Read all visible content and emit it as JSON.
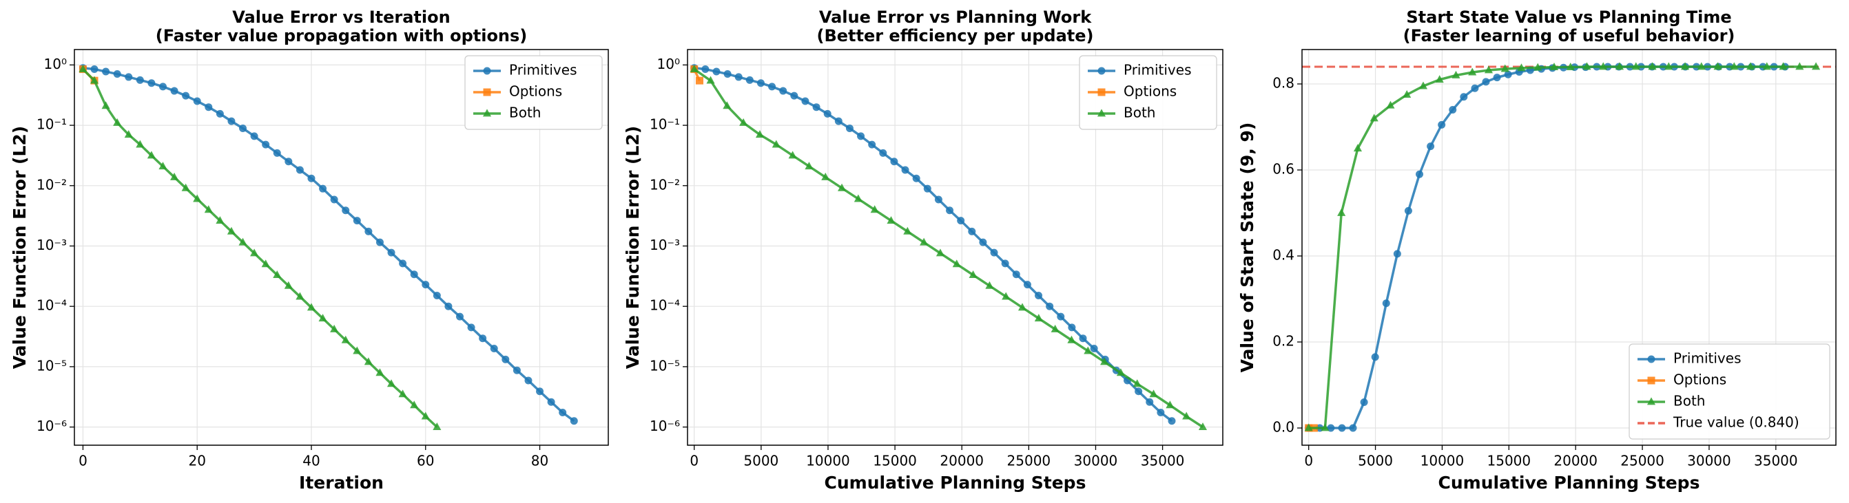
{
  "chart_data": [
    {
      "type": "line",
      "title": "Value Error vs Iteration",
      "subtitle": "(Faster value propagation with options)",
      "xlabel": "Iteration",
      "ylabel": "Value Function Error (L2)",
      "log_y": true,
      "grid": true,
      "legend": "upper right",
      "xlim": [
        -1.5,
        92
      ],
      "xticks": [
        0,
        20,
        40,
        60,
        80
      ],
      "ylim": [
        5e-07,
        1.8
      ],
      "yticks": [
        {
          "value": 1e-06,
          "label": "10⁻⁶"
        },
        {
          "value": 1e-05,
          "label": "10⁻⁵"
        },
        {
          "value": 0.0001,
          "label": "10⁻⁴"
        },
        {
          "value": 0.001,
          "label": "10⁻³"
        },
        {
          "value": 0.01,
          "label": "10⁻²"
        },
        {
          "value": 0.1,
          "label": "10⁻¹"
        },
        {
          "value": 1,
          "label": "10⁰"
        }
      ],
      "series": [
        {
          "name": "Primitives",
          "color": "#1f77b4",
          "marker": "circle",
          "x": [
            0,
            2,
            4,
            6,
            8,
            10,
            12,
            14,
            16,
            18,
            20,
            22,
            24,
            26,
            28,
            30,
            32,
            34,
            36,
            38,
            40,
            42,
            44,
            46,
            48,
            50,
            52,
            54,
            56,
            58,
            60,
            62,
            64,
            66,
            68,
            70,
            72,
            74,
            76,
            78,
            80,
            82,
            84,
            86
          ],
          "values": [
            0.891,
            0.851,
            0.776,
            0.708,
            0.631,
            0.562,
            0.501,
            0.437,
            0.372,
            0.309,
            0.251,
            0.2,
            0.155,
            0.117,
            0.0891,
            0.0661,
            0.0479,
            0.0347,
            0.0251,
            0.0182,
            0.0132,
            0.00891,
            0.00589,
            0.00389,
            0.00263,
            0.00174,
            0.00115,
            0.000776,
            0.000513,
            0.000339,
            0.000229,
            0.000151,
            0.0001,
            6.76e-05,
            4.47e-05,
            2.95e-05,
            2e-05,
            1.32e-05,
            8.7e-06,
            5.9e-06,
            3.9e-06,
            2.6e-06,
            1.74e-06,
            1.26e-06
          ]
        },
        {
          "name": "Options",
          "color": "#ff7f0e",
          "marker": "square",
          "x": [
            0,
            2
          ],
          "values": [
            0.85,
            0.55
          ]
        },
        {
          "name": "Both",
          "color": "#2ca02c",
          "marker": "triangle",
          "x": [
            0,
            2,
            4,
            6,
            8,
            10,
            12,
            14,
            16,
            18,
            20,
            22,
            24,
            26,
            28,
            30,
            32,
            34,
            36,
            38,
            40,
            42,
            44,
            46,
            48,
            50,
            52,
            54,
            56,
            58,
            60,
            62
          ],
          "values": [
            0.85,
            0.55,
            0.21,
            0.11,
            0.07,
            0.048,
            0.0316,
            0.0209,
            0.0138,
            0.00912,
            0.00603,
            0.00398,
            0.00263,
            0.00174,
            0.00115,
            0.000759,
            0.000501,
            0.000331,
            0.000219,
            0.000145,
            9.55e-05,
            6.31e-05,
            4.17e-05,
            2.75e-05,
            1.82e-05,
            1.2e-05,
            7.9e-06,
            5.2e-06,
            3.5e-06,
            2.3e-06,
            1.5e-06,
            1e-06
          ]
        }
      ]
    },
    {
      "type": "line",
      "title": "Value Error vs Planning Work",
      "subtitle": "(Better efficiency per update)",
      "xlabel": "Cumulative Planning Steps",
      "ylabel": "Value Function Error (L2)",
      "log_y": true,
      "grid": true,
      "legend": "upper right",
      "xlim": [
        -500,
        39500
      ],
      "xticks": [
        0,
        5000,
        10000,
        15000,
        20000,
        25000,
        30000,
        35000
      ],
      "ylim": [
        5e-07,
        1.8
      ],
      "yticks": [
        {
          "value": 1e-06,
          "label": "10⁻⁶"
        },
        {
          "value": 1e-05,
          "label": "10⁻⁵"
        },
        {
          "value": 0.0001,
          "label": "10⁻⁴"
        },
        {
          "value": 0.001,
          "label": "10⁻³"
        },
        {
          "value": 0.01,
          "label": "10⁻²"
        },
        {
          "value": 0.1,
          "label": "10⁻¹"
        },
        {
          "value": 1,
          "label": "10⁰"
        }
      ],
      "series": [
        {
          "name": "Primitives",
          "color": "#1f77b4",
          "marker": "circle",
          "x": [
            0,
            830,
            1660,
            2490,
            3320,
            4150,
            4980,
            5810,
            6640,
            7470,
            8300,
            9130,
            9960,
            10790,
            11620,
            12450,
            13280,
            14110,
            14940,
            15770,
            16600,
            17430,
            18260,
            19090,
            19920,
            20750,
            21580,
            22410,
            23240,
            24070,
            24900,
            25730,
            26560,
            27390,
            28220,
            29050,
            29880,
            30710,
            31540,
            32370,
            33200,
            34030,
            34860,
            35690
          ],
          "values": [
            0.891,
            0.851,
            0.776,
            0.708,
            0.631,
            0.562,
            0.501,
            0.437,
            0.372,
            0.309,
            0.251,
            0.2,
            0.155,
            0.117,
            0.0891,
            0.0661,
            0.0479,
            0.0347,
            0.0251,
            0.0182,
            0.0132,
            0.00891,
            0.00589,
            0.00389,
            0.00263,
            0.00174,
            0.00115,
            0.000776,
            0.000513,
            0.000339,
            0.000229,
            0.000151,
            0.0001,
            6.76e-05,
            4.47e-05,
            2.95e-05,
            2e-05,
            1.32e-05,
            8.7e-06,
            5.9e-06,
            3.9e-06,
            2.6e-06,
            1.74e-06,
            1.26e-06
          ]
        },
        {
          "name": "Options",
          "color": "#ff7f0e",
          "marker": "square",
          "x": [
            0,
            400
          ],
          "values": [
            0.85,
            0.55
          ]
        },
        {
          "name": "Both",
          "color": "#2ca02c",
          "marker": "triangle",
          "x": [
            0,
            1226,
            2452,
            3678,
            4904,
            6130,
            7356,
            8582,
            9808,
            11034,
            12260,
            13486,
            14712,
            15938,
            17164,
            18390,
            19616,
            20842,
            22068,
            23294,
            24520,
            25746,
            26972,
            28198,
            29424,
            30650,
            31876,
            33102,
            34328,
            35554,
            36780,
            38006
          ],
          "values": [
            0.85,
            0.55,
            0.21,
            0.11,
            0.07,
            0.048,
            0.0316,
            0.0209,
            0.0138,
            0.00912,
            0.00603,
            0.00398,
            0.00263,
            0.00174,
            0.00115,
            0.000759,
            0.000501,
            0.000331,
            0.000219,
            0.000145,
            9.55e-05,
            6.31e-05,
            4.17e-05,
            2.75e-05,
            1.82e-05,
            1.2e-05,
            7.9e-06,
            5.2e-06,
            3.5e-06,
            2.3e-06,
            1.5e-06,
            1e-06
          ]
        }
      ]
    },
    {
      "type": "line",
      "title": "Start State Value vs Planning Time",
      "subtitle": "(Faster learning of useful behavior)",
      "xlabel": "Cumulative Planning Steps",
      "ylabel": "Value of Start State (9, 9)",
      "log_y": false,
      "grid": true,
      "legend": "lower right",
      "xlim": [
        -500,
        39500
      ],
      "xticks": [
        0,
        5000,
        10000,
        15000,
        20000,
        25000,
        30000,
        35000
      ],
      "ylim": [
        -0.04,
        0.88
      ],
      "yticks": [
        {
          "value": 0,
          "label": "0.0"
        },
        0.2,
        0.4,
        0.6,
        0.8
      ],
      "series": [
        {
          "name": "Primitives",
          "color": "#1f77b4",
          "marker": "circle",
          "x": [
            0,
            830,
            1660,
            2490,
            3320,
            4150,
            4980,
            5810,
            6640,
            7470,
            8300,
            9130,
            9960,
            10790,
            11620,
            12450,
            13280,
            14110,
            14940,
            15770,
            16600,
            17430,
            18260,
            19090,
            19920,
            20750,
            21580,
            22410,
            23240,
            24070,
            24900,
            25730,
            26560,
            27390,
            28220,
            29050,
            29880,
            30710,
            31540,
            32370,
            33200,
            34030,
            34860,
            35690
          ],
          "values": [
            0,
            0,
            0,
            0,
            0,
            0.06,
            0.165,
            0.29,
            0.405,
            0.505,
            0.59,
            0.655,
            0.705,
            0.74,
            0.77,
            0.79,
            0.805,
            0.815,
            0.822,
            0.828,
            0.832,
            0.835,
            0.837,
            0.838,
            0.839,
            0.839,
            0.84,
            0.84,
            0.84,
            0.84,
            0.84,
            0.84,
            0.84,
            0.84,
            0.84,
            0.84,
            0.84,
            0.84,
            0.84,
            0.84,
            0.84,
            0.84,
            0.84,
            0.84
          ]
        },
        {
          "name": "Options",
          "color": "#ff7f0e",
          "marker": "square",
          "x": [
            0,
            400
          ],
          "values": [
            0,
            0
          ]
        },
        {
          "name": "Both",
          "color": "#2ca02c",
          "marker": "triangle",
          "x": [
            0,
            1226,
            2452,
            3678,
            4904,
            6130,
            7356,
            8582,
            9808,
            11034,
            12260,
            13486,
            14712,
            15938,
            17164,
            18390,
            19616,
            20842,
            22068,
            23294,
            24520,
            25746,
            26972,
            28198,
            29424,
            30650,
            31876,
            33102,
            34328,
            35554,
            36780,
            38006
          ],
          "values": [
            0,
            0,
            0.5,
            0.65,
            0.72,
            0.75,
            0.775,
            0.795,
            0.81,
            0.82,
            0.827,
            0.832,
            0.835,
            0.837,
            0.838,
            0.839,
            0.839,
            0.84,
            0.84,
            0.84,
            0.84,
            0.84,
            0.84,
            0.84,
            0.84,
            0.84,
            0.84,
            0.84,
            0.84,
            0.84,
            0.84,
            0.84
          ]
        }
      ],
      "reference_line": {
        "name": "True value (0.840)",
        "value": 0.84,
        "color": "#e74c3c"
      }
    }
  ]
}
